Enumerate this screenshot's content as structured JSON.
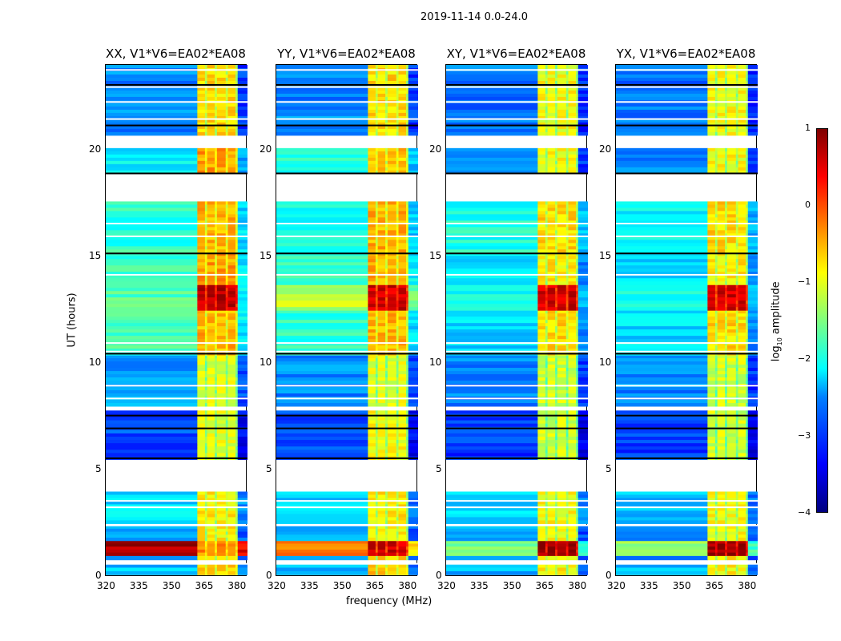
{
  "chart_data": {
    "type": "heatmap",
    "title": "2019-11-14 0.0-24.0",
    "xlabel": "frequency (MHz)",
    "ylabel": "UT (hours)",
    "xlim": [
      320,
      385
    ],
    "ylim": [
      0,
      24
    ],
    "xticks": [
      320,
      335,
      350,
      365,
      380
    ],
    "yticks": [
      0,
      5,
      10,
      15,
      20
    ],
    "colorbar": {
      "label": "log10 amplitude",
      "label_main": "log",
      "label_sub": "10",
      "label_rest": " amplitude",
      "range": [
        -4,
        1
      ],
      "ticks": [
        "1",
        "0",
        "−1",
        "−2",
        "−3",
        "−4"
      ],
      "tick_values": [
        1,
        0,
        -1,
        -2,
        -3,
        -4
      ],
      "colormap": "jet"
    },
    "frequency_bands": [
      {
        "range": [
          320,
          362
        ],
        "kind": "bg"
      },
      {
        "range": [
          362,
          365.5
        ],
        "kind": "rfi"
      },
      {
        "range": [
          365.5,
          366.5
        ],
        "kind": "stripe"
      },
      {
        "range": [
          366.5,
          370
        ],
        "kind": "rfi"
      },
      {
        "range": [
          370,
          371
        ],
        "kind": "stripe"
      },
      {
        "range": [
          371,
          375
        ],
        "kind": "rfi"
      },
      {
        "range": [
          375,
          376
        ],
        "kind": "stripe"
      },
      {
        "range": [
          376,
          379.5
        ],
        "kind": "rfi"
      },
      {
        "range": [
          379.5,
          380.5
        ],
        "kind": "stripe"
      },
      {
        "range": [
          380.5,
          385
        ],
        "kind": "edge"
      }
    ],
    "time_segments": [
      [
        0.1,
        0.6
      ],
      [
        0.8,
        1.0
      ],
      [
        1.0,
        1.7
      ],
      [
        1.7,
        2.4
      ],
      [
        2.5,
        4.0
      ],
      [
        5.5,
        7.8
      ],
      [
        8.0,
        10.4
      ],
      [
        10.4,
        12.5
      ],
      [
        12.5,
        13.7
      ],
      [
        13.7,
        15.2
      ],
      [
        15.2,
        17.6
      ],
      [
        18.9,
        20.1
      ],
      [
        20.7,
        24.0
      ]
    ],
    "flag_lines_white": [
      0.65,
      2.45,
      3.3,
      3.6,
      8.4,
      9.0,
      10.6,
      11.0,
      14.2,
      16.0,
      16.6,
      21.5,
      22.3,
      23.0,
      23.8
    ],
    "flag_lines_black": [
      5.6,
      7.6,
      7.0,
      10.5,
      15.2,
      18.95,
      21.2,
      23.1
    ],
    "panels": [
      {
        "title": "XX, V1*V6=EA02*EA08",
        "bg": [
          -2.4,
          -2.6,
          0.8,
          -2.5,
          -2.3,
          -3.0,
          -2.6,
          -1.8,
          -1.7,
          -1.8,
          -1.9,
          -2.2,
          -2.7
        ],
        "rfi": [
          -0.6,
          -0.7,
          -0.3,
          -0.8,
          -0.8,
          -1.0,
          -1.0,
          -0.5,
          0.7,
          -0.4,
          -0.5,
          -0.4,
          -0.7
        ]
      },
      {
        "title": "YY, V1*V6=EA02*EA08",
        "bg": [
          -2.4,
          -2.6,
          -0.3,
          -2.5,
          -2.4,
          -3.0,
          -2.7,
          -1.9,
          -1.2,
          -1.8,
          -2.0,
          -2.0,
          -2.7
        ],
        "rfi": [
          -0.6,
          -0.7,
          0.6,
          -0.8,
          -0.8,
          -0.9,
          -1.0,
          -0.5,
          0.6,
          -0.5,
          -0.5,
          -0.6,
          -0.7
        ]
      },
      {
        "title": "XY, V1*V6=EA02*EA08",
        "bg": [
          -2.5,
          -2.7,
          -1.5,
          -2.6,
          -2.3,
          -3.1,
          -2.7,
          -2.3,
          -2.1,
          -2.3,
          -2.0,
          -2.7,
          -2.8
        ],
        "rfi": [
          -0.8,
          -0.8,
          0.9,
          -0.9,
          -0.9,
          -1.1,
          -1.1,
          -0.7,
          0.6,
          -0.8,
          -0.7,
          -0.9,
          -0.9
        ]
      },
      {
        "title": "YX, V1*V6=EA02*EA08",
        "bg": [
          -2.5,
          -2.7,
          -1.4,
          -2.6,
          -2.4,
          -3.1,
          -2.7,
          -2.3,
          -2.1,
          -2.3,
          -2.1,
          -2.7,
          -2.8
        ],
        "rfi": [
          -0.8,
          -0.8,
          0.9,
          -0.9,
          -0.9,
          -1.1,
          -1.1,
          -0.7,
          0.6,
          -0.8,
          -0.7,
          -0.9,
          -0.9
        ]
      }
    ]
  }
}
